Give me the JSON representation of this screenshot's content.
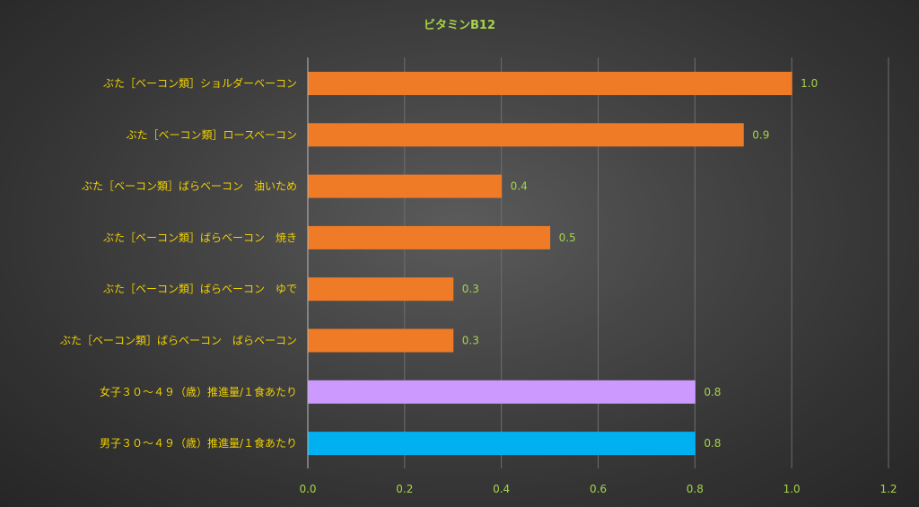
{
  "chart_data": {
    "type": "bar",
    "orientation": "horizontal",
    "title": "ビタミンB12",
    "xlabel": "",
    "ylabel": "",
    "xlim": [
      0,
      1.2
    ],
    "x_ticks": [
      "0.0",
      "0.2",
      "0.4",
      "0.6",
      "0.8",
      "1.0",
      "1.2"
    ],
    "grid": true,
    "legend": "none",
    "categories": [
      "ぶた［ベーコン類］ショルダーベーコン",
      "ぶた［ベーコン類］ロースベーコン",
      "ぶた［ベーコン類］ばらベーコン　油いため",
      "ぶた［ベーコン類］ばらベーコン　焼き",
      "ぶた［ベーコン類］ばらベーコン　ゆで",
      "ぶた［ベーコン類］ばらベーコン　ばらベーコン",
      "女子３０～４９（歳）推進量/１食あたり",
      "男子３０～４９（歳）推進量/１食あたり"
    ],
    "values": [
      1.0,
      0.9,
      0.4,
      0.5,
      0.3,
      0.3,
      0.8,
      0.8
    ],
    "value_labels": [
      "1.0",
      "0.9",
      "0.4",
      "0.5",
      "0.3",
      "0.3",
      "0.8",
      "0.8"
    ],
    "bar_colors": [
      "#f07b26",
      "#f07b26",
      "#f07b26",
      "#f07b26",
      "#f07b26",
      "#f07b26",
      "#cc99ff",
      "#00b0f0"
    ],
    "colors": {
      "title": "#a6d34a",
      "category_text": "#f0d000",
      "tick_text": "#a6d34a",
      "data_label_text": "#a6d34a"
    }
  }
}
